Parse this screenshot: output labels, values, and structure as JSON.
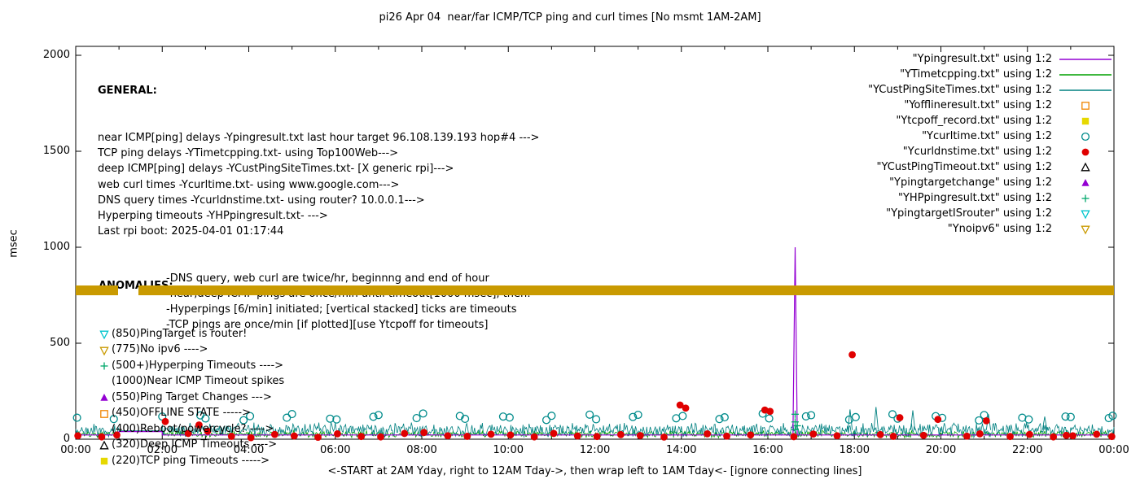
{
  "title": "pi26 Apr 04  near/far ICMP/TCP ping and curl times [No msmt 1AM-2AM]",
  "axes": {
    "ylabel": "msec",
    "xlabel": "<-START at 2AM Yday, right to 12AM Tday->, then wrap left to 1AM Tday<- [ignore connecting lines]"
  },
  "general": {
    "heading": "GENERAL:",
    "lines": [
      "near ICMP[ping] delays -Ypingresult.txt last hour target 96.108.139.193 hop#4 --->",
      "TCP ping delays -YTimetcpping.txt- using Top100Web--->",
      "deep ICMP[ping] delays -YCustPingSiteTimes.txt- [X generic rpi]--->",
      "web curl times -Ycurltime.txt- using www.google.com--->",
      "DNS query times -Ycurldnstime.txt- using router? 10.0.0.1--->",
      "Hyperping timeouts -YHPpingresult.txt- --->",
      "Last rpi boot: 2025-04-01 01:17:44"
    ],
    "notes": [
      "-DNS query, web curl are twice/hr, beginnng and end of hour",
      "-near,deep ICMP pings are once/min until timeout[1000 msec], then:",
      "-Hyperpings [6/min] initiated; [vertical stacked] ticks are timeouts",
      "-TCP pings are once/min [if plotted][use Ytcpoff for timeouts]"
    ]
  },
  "anomalies": {
    "heading": "ANOMALIES:",
    "items": [
      {
        "marker": "triangle-down-open",
        "color": "#00c5cd",
        "text": "(850)PingTarget is router!"
      },
      {
        "marker": "triangle-down-open",
        "color": "#c99a00",
        "text": "(775)No ipv6 ---->"
      },
      {
        "marker": "plus",
        "color": "#00a86b",
        "text": "(500+)Hyperping Timeouts ---->"
      },
      {
        "marker": "none",
        "color": "",
        "text": "(1000)Near ICMP Timeout spikes"
      },
      {
        "marker": "triangle-up-filled",
        "color": "#9400d3",
        "text": "(550)Ping Target Changes --->"
      },
      {
        "marker": "square-open",
        "color": "#ef8500",
        "text": "(450)OFFLINE STATE ----->"
      },
      {
        "marker": "none",
        "color": "",
        "text": "(400)Reboot/powercycle? ---->"
      },
      {
        "marker": "triangle-up-open",
        "color": "#000000",
        "text": "(320)Deep ICMP Timeouts ---->"
      },
      {
        "marker": "square-filled",
        "color": "#e6d800",
        "text": "(220)TCP ping Timeouts ----->"
      }
    ]
  },
  "legend": {
    "items": [
      {
        "label": "\"Ypingresult.txt\" using 1:2",
        "sample": "line",
        "color": "#9400d3"
      },
      {
        "label": "\"YTimetcpping.txt\" using 1:2",
        "sample": "line",
        "color": "#00a000"
      },
      {
        "label": "\"YCustPingSiteTimes.txt\" using 1:2",
        "sample": "line",
        "color": "#008080"
      },
      {
        "label": "\"Yofflineresult.txt\" using 1:2",
        "sample": "square-open",
        "color": "#ef8500"
      },
      {
        "label": "\"Ytcpoff_record.txt\" using 1:2",
        "sample": "square-filled",
        "color": "#e6d800"
      },
      {
        "label": "\"Ycurltime.txt\" using 1:2",
        "sample": "circle-open",
        "color": "#008b8b"
      },
      {
        "label": "\"Ycurldnstime.txt\" using 1:2",
        "sample": "circle-filled",
        "color": "#e00000"
      },
      {
        "label": "\"YCustPingTimeout.txt\" using 1:2",
        "sample": "triangle-up-open",
        "color": "#000000"
      },
      {
        "label": "\"Ypingtargetchange\" using 1:2",
        "sample": "triangle-up-filled",
        "color": "#9400d3"
      },
      {
        "label": "\"YHPpingresult.txt\" using 1:2",
        "sample": "plus",
        "color": "#00a86b"
      },
      {
        "label": "\"YpingtargetISrouter\" using 1:2",
        "sample": "triangle-down-open",
        "color": "#00c5cd"
      },
      {
        "label": "\"Ynoipv6\" using 1:2",
        "sample": "triangle-down-open",
        "color": "#c99a00"
      }
    ]
  },
  "chart_data": {
    "type": "line+scatter",
    "title": "pi26 Apr 04  near/far ICMP/TCP ping and curl times [No msmt 1AM-2AM]",
    "xlabel": "<-START at 2AM Yday, right to 12AM Tday->, then wrap left to 1AM Tday<- [ignore connecting lines]",
    "ylabel": "msec",
    "xlim": [
      0,
      24
    ],
    "ylim": [
      0,
      2000
    ],
    "yticks": [
      0,
      500,
      1000,
      1500,
      2000
    ],
    "xtick_labels": [
      "00:00",
      "02:00",
      "04:00",
      "06:00",
      "08:00",
      "10:00",
      "12:00",
      "14:00",
      "16:00",
      "18:00",
      "20:00",
      "22:00",
      "00:00"
    ],
    "gap_hours": [
      1.0,
      2.0
    ],
    "series": [
      {
        "name": "YTimetcpping",
        "type": "noise",
        "color": "#00a000",
        "baseline": 26,
        "amplitude": 20,
        "seed": 11
      },
      {
        "name": "YCustPingSiteTimes",
        "type": "noise",
        "color": "#008080",
        "baseline": 48,
        "amplitude": 42,
        "seed": 7,
        "bridge": 45,
        "spikes": [
          [
            17.9,
            155
          ],
          [
            18.5,
            168
          ],
          [
            19.35,
            150
          ],
          [
            21.1,
            130
          ],
          [
            22.4,
            118
          ]
        ]
      },
      {
        "name": "Ypingresult",
        "type": "line",
        "color": "#9400d3",
        "points": [
          [
            0,
            22
          ],
          [
            1,
            22
          ],
          [
            1,
            40
          ],
          [
            2,
            40
          ],
          [
            2,
            22
          ],
          [
            16.58,
            22
          ],
          [
            16.63,
            1000
          ],
          [
            16.68,
            22
          ],
          [
            24,
            22
          ]
        ]
      },
      {
        "name": "Ycurltime",
        "type": "scatter",
        "marker": "circle-open",
        "color": "#008b8b",
        "points": [
          [
            0.03,
            112
          ],
          [
            0.88,
            105
          ],
          [
            2.0,
            118
          ],
          [
            2.88,
            124
          ],
          [
            3.0,
            108
          ],
          [
            3.88,
            99
          ],
          [
            4.03,
            120
          ],
          [
            4.88,
            112
          ],
          [
            5.0,
            131
          ],
          [
            5.88,
            107
          ],
          [
            6.03,
            103
          ],
          [
            6.88,
            117
          ],
          [
            7.0,
            126
          ],
          [
            7.88,
            110
          ],
          [
            8.03,
            134
          ],
          [
            8.88,
            121
          ],
          [
            9.0,
            106
          ],
          [
            9.88,
            118
          ],
          [
            10.03,
            113
          ],
          [
            10.88,
            100
          ],
          [
            11.0,
            122
          ],
          [
            11.88,
            128
          ],
          [
            12.03,
            104
          ],
          [
            12.88,
            116
          ],
          [
            13.0,
            127
          ],
          [
            13.88,
            109
          ],
          [
            14.03,
            121
          ],
          [
            14.88,
            105
          ],
          [
            15.0,
            114
          ],
          [
            15.88,
            133
          ],
          [
            16.03,
            108
          ],
          [
            16.88,
            119
          ],
          [
            17.0,
            125
          ],
          [
            17.88,
            102
          ],
          [
            18.03,
            115
          ],
          [
            18.88,
            130
          ],
          [
            19.0,
            107
          ],
          [
            19.88,
            120
          ],
          [
            20.03,
            111
          ],
          [
            20.88,
            98
          ],
          [
            21.0,
            126
          ],
          [
            21.88,
            112
          ],
          [
            22.03,
            103
          ],
          [
            22.88,
            118
          ],
          [
            23.0,
            116
          ],
          [
            23.88,
            110
          ],
          [
            23.97,
            122
          ]
        ]
      },
      {
        "name": "Ycurldnstime",
        "type": "scatter",
        "marker": "circle-filled",
        "color": "#e00000",
        "points": [
          [
            0.05,
            18
          ],
          [
            0.6,
            12
          ],
          [
            0.95,
            22
          ],
          [
            2.07,
            92
          ],
          [
            2.6,
            30
          ],
          [
            2.85,
            74
          ],
          [
            3.05,
            42
          ],
          [
            3.6,
            15
          ],
          [
            4.05,
            8
          ],
          [
            4.6,
            25
          ],
          [
            5.05,
            17
          ],
          [
            5.6,
            10
          ],
          [
            6.05,
            28
          ],
          [
            6.6,
            14
          ],
          [
            7.05,
            12
          ],
          [
            7.6,
            30
          ],
          [
            8.05,
            35
          ],
          [
            8.6,
            18
          ],
          [
            9.05,
            15
          ],
          [
            9.6,
            26
          ],
          [
            10.05,
            22
          ],
          [
            10.6,
            12
          ],
          [
            11.05,
            30
          ],
          [
            11.6,
            17
          ],
          [
            12.05,
            14
          ],
          [
            12.6,
            24
          ],
          [
            13.05,
            19
          ],
          [
            13.6,
            11
          ],
          [
            13.97,
            178
          ],
          [
            14.1,
            162
          ],
          [
            14.6,
            28
          ],
          [
            15.05,
            16
          ],
          [
            15.6,
            22
          ],
          [
            15.93,
            152
          ],
          [
            16.05,
            145
          ],
          [
            16.6,
            13
          ],
          [
            17.05,
            27
          ],
          [
            17.6,
            18
          ],
          [
            17.95,
            440
          ],
          [
            18.6,
            24
          ],
          [
            18.9,
            15
          ],
          [
            19.05,
            112
          ],
          [
            19.6,
            20
          ],
          [
            19.93,
            103
          ],
          [
            20.6,
            16
          ],
          [
            20.9,
            28
          ],
          [
            21.05,
            96
          ],
          [
            21.6,
            14
          ],
          [
            22.05,
            25
          ],
          [
            22.6,
            12
          ],
          [
            22.9,
            20
          ],
          [
            23.05,
            18
          ],
          [
            23.6,
            26
          ],
          [
            23.95,
            14
          ]
        ]
      },
      {
        "name": "YHPpingresult",
        "type": "scatter",
        "marker": "plus",
        "color": "#00a86b",
        "points": [
          [
            16.63,
            50
          ],
          [
            16.63,
            90
          ],
          [
            16.63,
            130
          ],
          [
            16.68,
            70
          ]
        ]
      },
      {
        "name": "Ynoipv6",
        "type": "band",
        "color": "#c99a00",
        "y_low": 752,
        "y_high": 800,
        "segments": [
          [
            0,
            0.98
          ],
          [
            1.45,
            24
          ]
        ]
      }
    ]
  }
}
